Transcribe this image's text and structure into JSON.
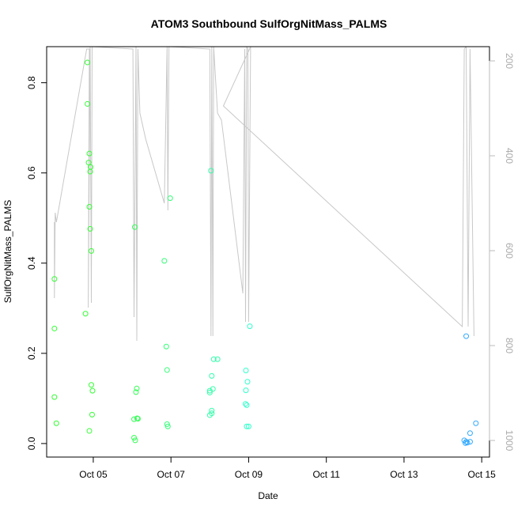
{
  "chart_data": {
    "type": "scatter",
    "title": "ATOM3 Southbound SulfOrgNitMass_PALMS",
    "xlabel": "Date",
    "ylabel": "SulfOrgNitMass_PALMS",
    "x_ticks": [
      "Oct 05",
      "Oct 07",
      "Oct 09",
      "Oct 11",
      "Oct 13",
      "Oct 15"
    ],
    "x_tick_values": [
      5,
      7,
      9,
      11,
      13,
      15
    ],
    "xlim": [
      3.8,
      15.2
    ],
    "y_ticks": [
      "0.0",
      "0.2",
      "0.4",
      "0.6",
      "0.8"
    ],
    "y_tick_values": [
      0.0,
      0.2,
      0.4,
      0.6,
      0.8
    ],
    "ylim": [
      -0.03,
      0.88
    ],
    "right_axis": {
      "ticks": [
        "200",
        "400",
        "600",
        "800",
        "1000"
      ],
      "tick_values": [
        200,
        400,
        600,
        800,
        1000
      ],
      "range": [
        1035,
        170
      ],
      "color": "#bbbbbb"
    },
    "grid": false,
    "points": [
      [
        4.0,
        0.365,
        "#33ff33"
      ],
      [
        4.0,
        0.255,
        "#33ff33"
      ],
      [
        4.0,
        0.103,
        "#33ff33"
      ],
      [
        4.05,
        0.045,
        "#33ff33"
      ],
      [
        4.85,
        0.845,
        "#33ff33"
      ],
      [
        4.85,
        0.753,
        "#33ff33"
      ],
      [
        4.9,
        0.643,
        "#33ff33"
      ],
      [
        4.88,
        0.623,
        "#33ff33"
      ],
      [
        4.93,
        0.613,
        "#33ff33"
      ],
      [
        4.92,
        0.603,
        "#33ff33"
      ],
      [
        4.9,
        0.525,
        "#33ff33"
      ],
      [
        4.92,
        0.476,
        "#33ff33"
      ],
      [
        4.95,
        0.427,
        "#33ff33"
      ],
      [
        4.8,
        0.288,
        "#33ff33"
      ],
      [
        4.95,
        0.13,
        "#33ff33"
      ],
      [
        4.98,
        0.117,
        "#33ff33"
      ],
      [
        4.97,
        0.064,
        "#33ff33"
      ],
      [
        4.9,
        0.028,
        "#33ff33"
      ],
      [
        6.07,
        0.48,
        "#33ff55"
      ],
      [
        6.12,
        0.122,
        "#33ff55"
      ],
      [
        6.1,
        0.114,
        "#33ff55"
      ],
      [
        6.13,
        0.056,
        "#33ff55"
      ],
      [
        6.15,
        0.055,
        "#33ff55"
      ],
      [
        6.05,
        0.054,
        "#33ff55"
      ],
      [
        6.05,
        0.013,
        "#33ff55"
      ],
      [
        6.08,
        0.007,
        "#33ff55"
      ],
      [
        6.83,
        0.405,
        "#33ff77"
      ],
      [
        6.98,
        0.544,
        "#33ff77"
      ],
      [
        6.88,
        0.215,
        "#33ff77"
      ],
      [
        6.9,
        0.163,
        "#33ff77"
      ],
      [
        6.9,
        0.043,
        "#33ff77"
      ],
      [
        6.92,
        0.038,
        "#33ff77"
      ],
      [
        8.03,
        0.605,
        "#33ffaa"
      ],
      [
        8.1,
        0.187,
        "#33ffaa"
      ],
      [
        8.2,
        0.187,
        "#33ffaa"
      ],
      [
        8.05,
        0.15,
        "#33ffaa"
      ],
      [
        8.08,
        0.121,
        "#33ffaa"
      ],
      [
        8.0,
        0.117,
        "#33ffaa"
      ],
      [
        8.0,
        0.113,
        "#33ffaa"
      ],
      [
        8.05,
        0.073,
        "#33ffaa"
      ],
      [
        8.05,
        0.067,
        "#33ffaa"
      ],
      [
        8.0,
        0.063,
        "#33ffaa"
      ],
      [
        9.03,
        0.26,
        "#33ffcc"
      ],
      [
        8.93,
        0.162,
        "#33ffcc"
      ],
      [
        8.97,
        0.137,
        "#33ffcc"
      ],
      [
        8.93,
        0.118,
        "#33ffcc"
      ],
      [
        8.92,
        0.088,
        "#33ffcc"
      ],
      [
        8.95,
        0.085,
        "#33ffcc"
      ],
      [
        8.95,
        0.038,
        "#33ffcc"
      ],
      [
        9.0,
        0.038,
        "#33ffcc"
      ],
      [
        14.6,
        0.238,
        "#33aaff"
      ],
      [
        14.85,
        0.045,
        "#33aaff"
      ],
      [
        14.7,
        0.023,
        "#33aaff"
      ],
      [
        14.55,
        0.007,
        "#33aaff"
      ],
      [
        14.6,
        0.004,
        "#33aaff"
      ],
      [
        14.63,
        0.002,
        "#33aaff"
      ],
      [
        14.7,
        0.004,
        "#33aaff"
      ],
      [
        14.58,
        0.001,
        "#33aaff"
      ]
    ],
    "altitude_line": [
      [
        4.0,
        540
      ],
      [
        4.0,
        700
      ],
      [
        4.02,
        520
      ],
      [
        4.05,
        540
      ],
      [
        4.83,
        175
      ],
      [
        4.9,
        175
      ],
      [
        4.87,
        720
      ],
      [
        4.92,
        170
      ],
      [
        4.95,
        710
      ],
      [
        4.97,
        170
      ],
      [
        6.02,
        175
      ],
      [
        6.05,
        740
      ],
      [
        6.1,
        170
      ],
      [
        6.12,
        790
      ],
      [
        6.15,
        175
      ],
      [
        6.2,
        310
      ],
      [
        6.35,
        365
      ],
      [
        6.83,
        500
      ],
      [
        6.9,
        170
      ],
      [
        6.92,
        515
      ],
      [
        6.95,
        170
      ],
      [
        8.0,
        175
      ],
      [
        8.03,
        780
      ],
      [
        8.05,
        170
      ],
      [
        8.08,
        780
      ],
      [
        8.1,
        170
      ],
      [
        8.2,
        310
      ],
      [
        8.3,
        325
      ],
      [
        8.85,
        690
      ],
      [
        8.9,
        175
      ],
      [
        8.92,
        750
      ],
      [
        8.95,
        170
      ],
      [
        8.98,
        175
      ],
      [
        9.0,
        750
      ],
      [
        9.05,
        170
      ],
      [
        8.35,
        295
      ],
      [
        14.5,
        760
      ],
      [
        14.55,
        175
      ],
      [
        14.6,
        170
      ],
      [
        14.65,
        760
      ],
      [
        14.7,
        175
      ],
      [
        14.8,
        780
      ]
    ]
  }
}
